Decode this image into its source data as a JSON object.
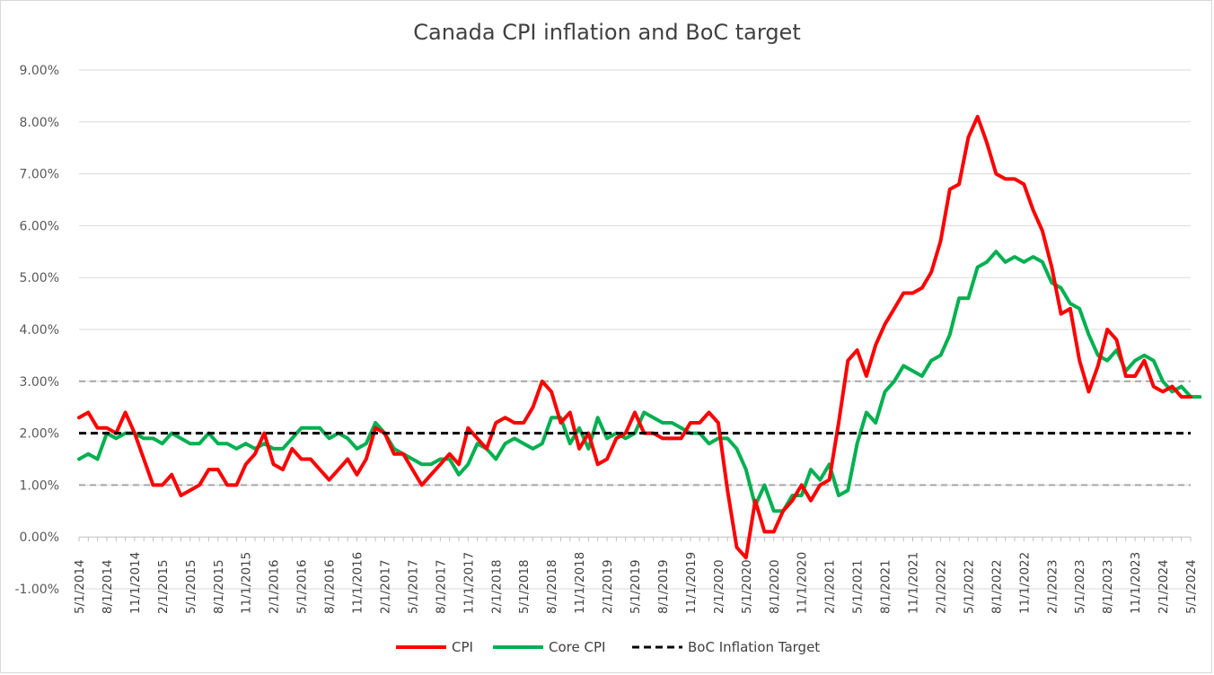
{
  "chart_data": {
    "type": "line",
    "title": "Canada CPI inflation and BoC target",
    "xlabel": "",
    "ylabel": "",
    "ylim": [
      -1.0,
      9.0
    ],
    "y_ticks": [
      "9.00%",
      "8.00%",
      "7.00%",
      "6.00%",
      "5.00%",
      "4.00%",
      "3.00%",
      "2.00%",
      "1.00%",
      "0.00%",
      "-1.00%"
    ],
    "x_start": "5/1/2014",
    "x_end": "5/1/2024",
    "x_tick_labels": [
      "5/1/2014",
      "8/1/2014",
      "11/1/2014",
      "2/1/2015",
      "5/1/2015",
      "8/1/2015",
      "11/1/2015",
      "2/1/2016",
      "5/1/2016",
      "8/1/2016",
      "11/1/2016",
      "2/1/2017",
      "5/1/2017",
      "8/1/2017",
      "11/1/2017",
      "2/1/2018",
      "5/1/2018",
      "8/1/2018",
      "11/1/2018",
      "2/1/2019",
      "5/1/2019",
      "8/1/2019",
      "11/1/2019",
      "2/1/2020",
      "5/1/2020",
      "8/1/2020",
      "11/1/2020",
      "2/1/2021",
      "5/1/2021",
      "8/1/2021",
      "11/1/2021",
      "2/1/2022",
      "5/1/2022",
      "8/1/2022",
      "11/1/2022",
      "2/1/2023",
      "5/1/2023",
      "8/1/2023",
      "11/1/2023",
      "2/1/2024",
      "5/1/2024"
    ],
    "reference_lines": [
      {
        "value": 3.0,
        "style": "dashed",
        "color": "#a6a6a6"
      },
      {
        "value": 1.0,
        "style": "dashed",
        "color": "#a6a6a6"
      }
    ],
    "legend_position": "bottom",
    "series": [
      {
        "name": "CPI",
        "color": "#ff0000",
        "values": [
          2.3,
          2.4,
          2.1,
          2.1,
          2.0,
          2.4,
          2.0,
          1.5,
          1.0,
          1.0,
          1.2,
          0.8,
          0.9,
          1.0,
          1.3,
          1.3,
          1.0,
          1.0,
          1.4,
          1.6,
          2.0,
          1.4,
          1.3,
          1.7,
          1.5,
          1.5,
          1.3,
          1.1,
          1.3,
          1.5,
          1.2,
          1.5,
          2.1,
          2.0,
          1.6,
          1.6,
          1.3,
          1.0,
          1.2,
          1.4,
          1.6,
          1.4,
          2.1,
          1.9,
          1.7,
          2.2,
          2.3,
          2.2,
          2.2,
          2.5,
          3.0,
          2.8,
          2.2,
          2.4,
          1.7,
          2.0,
          1.4,
          1.5,
          1.9,
          2.0,
          2.4,
          2.0,
          2.0,
          1.9,
          1.9,
          1.9,
          2.2,
          2.2,
          2.4,
          2.2,
          0.9,
          -0.2,
          -0.4,
          0.7,
          0.1,
          0.1,
          0.5,
          0.7,
          1.0,
          0.7,
          1.0,
          1.1,
          2.2,
          3.4,
          3.6,
          3.1,
          3.7,
          4.1,
          4.4,
          4.7,
          4.7,
          4.8,
          5.1,
          5.7,
          6.7,
          6.8,
          7.7,
          8.1,
          7.6,
          7.0,
          6.9,
          6.9,
          6.8,
          6.3,
          5.9,
          5.2,
          4.3,
          4.4,
          3.4,
          2.8,
          3.3,
          4.0,
          3.8,
          3.1,
          3.1,
          3.4,
          2.9,
          2.8,
          2.9,
          2.7,
          2.7
        ]
      },
      {
        "name": "Core CPI",
        "color": "#00b050",
        "values": [
          1.5,
          1.6,
          1.5,
          2.0,
          1.9,
          2.0,
          2.0,
          1.9,
          1.9,
          1.8,
          2.0,
          1.9,
          1.8,
          1.8,
          2.0,
          1.8,
          1.8,
          1.7,
          1.8,
          1.7,
          1.8,
          1.7,
          1.7,
          1.9,
          2.1,
          2.1,
          2.1,
          1.9,
          2.0,
          1.9,
          1.7,
          1.8,
          2.2,
          2.0,
          1.7,
          1.6,
          1.5,
          1.4,
          1.4,
          1.5,
          1.5,
          1.2,
          1.4,
          1.8,
          1.7,
          1.5,
          1.8,
          1.9,
          1.8,
          1.7,
          1.8,
          2.3,
          2.3,
          1.8,
          2.1,
          1.7,
          2.3,
          1.9,
          2.0,
          1.9,
          2.0,
          2.4,
          2.3,
          2.2,
          2.2,
          2.1,
          2.0,
          2.0,
          1.8,
          1.9,
          1.9,
          1.7,
          1.3,
          0.6,
          1.0,
          0.5,
          0.5,
          0.8,
          0.8,
          1.3,
          1.1,
          1.4,
          0.8,
          0.9,
          1.8,
          2.4,
          2.2,
          2.8,
          3.0,
          3.3,
          3.2,
          3.1,
          3.4,
          3.5,
          3.9,
          4.6,
          4.6,
          5.2,
          5.3,
          5.5,
          5.3,
          5.4,
          5.3,
          5.4,
          5.3,
          4.9,
          4.8,
          4.5,
          4.4,
          3.9,
          3.5,
          3.4,
          3.6,
          3.2,
          3.4,
          3.5,
          3.4,
          3.0,
          2.8,
          2.9,
          2.7,
          2.7
        ]
      },
      {
        "name": "BoC Inflation Target",
        "color": "#000000",
        "values": [
          2.0,
          2.0
        ]
      }
    ]
  }
}
